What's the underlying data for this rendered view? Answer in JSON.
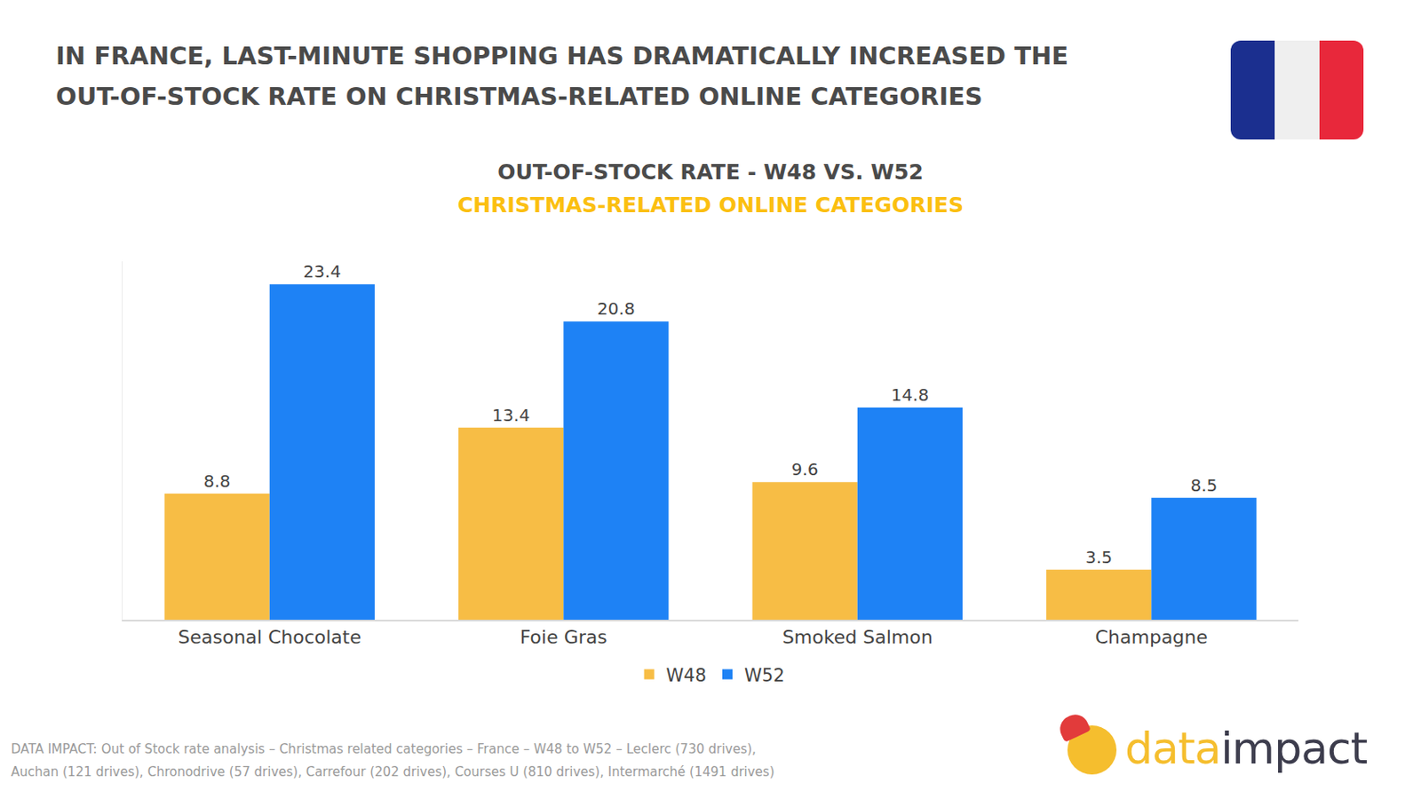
{
  "header": {
    "title": [
      "IN FRANCE, LAST-MINUTE SHOPPING HAS DRAMATICALLY INCREASED THE",
      "OUT-OF-STOCK RATE ON CHRISTMAS-RELATED ONLINE CATEGORIES"
    ]
  },
  "chart_data": {
    "type": "bar",
    "title": "OUT-OF-STOCK RATE - W48 VS. W52",
    "subtitle": "CHRISTMAS-RELATED ONLINE CATEGORIES",
    "categories": [
      "Seasonal Chocolate",
      "Foie Gras",
      "Smoked Salmon",
      "Champagne"
    ],
    "series": [
      {
        "name": "W48",
        "color": "#f7bd45",
        "values": [
          8.8,
          13.4,
          9.6,
          3.5
        ]
      },
      {
        "name": "W52",
        "color": "#1e82f5",
        "values": [
          23.4,
          20.8,
          14.8,
          8.5
        ]
      }
    ],
    "ylim": [
      0,
      25
    ],
    "grid": false,
    "data_labels": true,
    "tick_labels": "x",
    "legend": "bottom"
  },
  "footer": {
    "source": [
      "DATA IMPACT: Out of Stock rate analysis – Christmas related categories – France – W48 to W52  – Leclerc (730 drives),",
      "Auchan (121 drives), Chronodrive (57 drives), Carrefour (202 drives), Courses U (810 drives), Intermarché (1491 drives)"
    ],
    "logo": [
      "data",
      "impact"
    ]
  }
}
